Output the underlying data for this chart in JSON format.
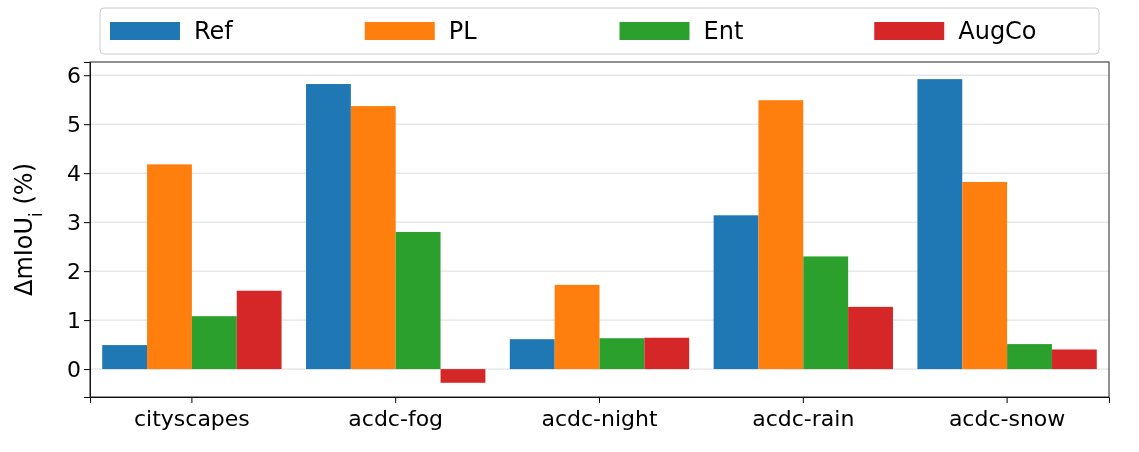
{
  "chart_data": {
    "type": "bar",
    "ylabel": "ΔmIoU$_{i}$ (%)",
    "categories": [
      "cityscapes",
      "acdc-fog",
      "acdc-night",
      "acdc-rain",
      "acdc-snow"
    ],
    "series": [
      {
        "name": "Ref",
        "color": "#1f77b4",
        "values": [
          0.49,
          5.82,
          0.61,
          3.14,
          5.92
        ]
      },
      {
        "name": "PL",
        "color": "#ff7f0e",
        "values": [
          4.18,
          5.37,
          1.72,
          5.49,
          3.82
        ]
      },
      {
        "name": "Ent",
        "color": "#2ca02c",
        "values": [
          1.08,
          2.8,
          0.63,
          2.3,
          0.51
        ]
      },
      {
        "name": "AugCo",
        "color": "#d62728",
        "values": [
          1.6,
          -0.28,
          0.64,
          1.27,
          0.4
        ]
      }
    ],
    "ylim": [
      -0.57,
      6.27
    ],
    "yticks": [
      0,
      1,
      2,
      3,
      4,
      5,
      6
    ],
    "grid": "y",
    "legend": "top"
  }
}
